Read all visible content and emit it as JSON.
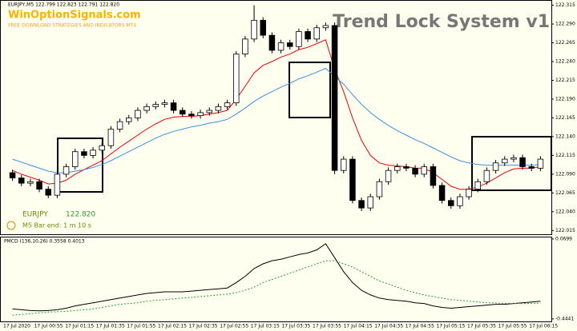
{
  "header": {
    "symbol_line": "EURJPY,M5  122.799 122.823 122.791 122.820",
    "site": "WinOptionSignals.com",
    "tagline": "FREE DOWNLOAD STRATEGIES AND INDICATORS MT4",
    "system_title": "Trend Lock System v1",
    "pair": "EURJPY",
    "price": "122.820",
    "bar_end": "M5 Bar end: 1 m 10 s"
  },
  "x_labels": [
    "17 Jul 2020",
    "17 Jul 00:55",
    "17 Jul 01:15",
    "17 Jul 01:35",
    "17 Jul 01:55",
    "17 Jul 02:15",
    "17 Jul 02:35",
    "17 Jul 02:55",
    "17 Jul 03:15",
    "17 Jul 03:35",
    "17 Jul 03:55",
    "17 Jul 04:15",
    "17 Jul 04:35",
    "17 Jul 04:55",
    "17 Jul 05:15",
    "17 Jul 05:35",
    "17 Jul 05:55",
    "17 Jul 06:15"
  ],
  "chart_data": [
    {
      "type": "candlestick",
      "up_color": "#ffffff",
      "down_color": "#000000",
      "open": [
        122.092,
        122.085,
        122.078,
        122.08,
        122.07,
        122.062,
        122.09,
        122.1,
        122.12,
        122.115,
        122.122,
        122.128,
        122.15,
        122.16,
        122.165,
        122.175,
        122.18,
        122.183,
        122.185,
        122.175,
        122.17,
        122.168,
        122.172,
        122.175,
        122.18,
        122.185,
        122.25,
        122.27,
        122.295,
        122.275,
        122.255,
        122.265,
        122.26,
        122.28,
        122.27,
        122.285,
        122.288,
        122.095,
        122.11,
        122.055,
        122.045,
        122.06,
        122.08,
        122.095,
        122.1,
        122.098,
        122.09,
        122.1,
        122.075,
        122.055,
        122.048,
        122.06,
        122.07,
        122.08,
        122.095,
        122.105,
        122.11,
        122.112,
        122.1,
        122.098
      ],
      "high": [
        122.096,
        122.089,
        122.084,
        122.084,
        122.074,
        122.094,
        122.104,
        122.124,
        122.124,
        122.126,
        122.132,
        122.154,
        122.164,
        122.169,
        122.179,
        122.184,
        122.187,
        122.189,
        122.189,
        122.179,
        122.174,
        122.176,
        122.179,
        122.184,
        122.189,
        122.254,
        122.274,
        122.315,
        122.299,
        122.279,
        122.269,
        122.269,
        122.284,
        122.284,
        122.289,
        122.292,
        122.292,
        122.114,
        122.114,
        122.059,
        122.064,
        122.084,
        122.099,
        122.104,
        122.104,
        122.102,
        122.104,
        122.104,
        122.079,
        122.059,
        122.064,
        122.074,
        122.084,
        122.099,
        122.109,
        122.114,
        122.116,
        122.116,
        122.104,
        122.114
      ],
      "low": [
        122.081,
        122.074,
        122.074,
        122.066,
        122.058,
        122.058,
        122.086,
        122.096,
        122.111,
        122.111,
        122.118,
        122.124,
        122.146,
        122.156,
        122.161,
        122.171,
        122.176,
        122.179,
        122.171,
        122.166,
        122.164,
        122.164,
        122.168,
        122.171,
        122.176,
        122.181,
        122.246,
        122.266,
        122.271,
        122.251,
        122.251,
        122.256,
        122.256,
        122.266,
        122.266,
        122.281,
        122.09,
        122.091,
        122.051,
        122.041,
        122.041,
        122.056,
        122.076,
        122.091,
        122.094,
        122.086,
        122.086,
        122.071,
        122.051,
        122.044,
        122.044,
        122.056,
        122.066,
        122.076,
        122.091,
        122.101,
        122.106,
        122.096,
        122.094,
        122.094
      ],
      "close": [
        122.085,
        122.078,
        122.08,
        122.07,
        122.062,
        122.09,
        122.1,
        122.12,
        122.115,
        122.122,
        122.128,
        122.15,
        122.16,
        122.165,
        122.175,
        122.18,
        122.183,
        122.185,
        122.175,
        122.17,
        122.168,
        122.172,
        122.175,
        122.18,
        122.185,
        122.25,
        122.27,
        122.295,
        122.275,
        122.255,
        122.265,
        122.26,
        122.28,
        122.27,
        122.285,
        122.288,
        122.095,
        122.11,
        122.055,
        122.045,
        122.06,
        122.08,
        122.095,
        122.1,
        122.098,
        122.09,
        122.1,
        122.075,
        122.055,
        122.048,
        122.06,
        122.07,
        122.08,
        122.095,
        122.105,
        122.11,
        122.112,
        122.1,
        122.098,
        122.11
      ],
      "lines": [
        {
          "color": "#e8000b",
          "values": [
            122.095,
            122.09,
            122.086,
            122.082,
            122.077,
            122.078,
            122.082,
            122.09,
            122.096,
            122.102,
            122.108,
            122.117,
            122.126,
            122.134,
            122.142,
            122.15,
            122.157,
            122.163,
            122.166,
            122.167,
            122.167,
            122.168,
            122.17,
            122.172,
            122.175,
            122.19,
            122.207,
            122.225,
            122.235,
            122.24,
            122.246,
            122.25,
            122.256,
            122.259,
            122.264,
            122.269,
            122.23,
            122.2,
            122.165,
            122.135,
            122.115,
            122.105,
            122.102,
            122.101,
            122.1,
            122.098,
            122.098,
            122.092,
            122.083,
            122.074,
            122.07,
            122.07,
            122.073,
            122.078,
            122.085,
            122.092,
            122.097,
            122.098,
            122.098,
            122.1
          ]
        },
        {
          "color": "#3d8fe0",
          "values": [
            122.11,
            122.106,
            122.102,
            122.098,
            122.094,
            122.092,
            122.092,
            122.094,
            122.096,
            122.099,
            122.103,
            122.108,
            122.114,
            122.12,
            122.126,
            122.132,
            122.138,
            122.143,
            122.147,
            122.15,
            122.153,
            122.155,
            122.158,
            122.16,
            122.163,
            122.17,
            122.178,
            122.187,
            122.194,
            122.2,
            122.206,
            122.211,
            122.217,
            122.221,
            122.226,
            122.231,
            122.22,
            122.21,
            122.196,
            122.183,
            122.172,
            122.163,
            122.155,
            122.148,
            122.142,
            122.136,
            122.131,
            122.125,
            122.119,
            122.113,
            122.108,
            122.105,
            122.103,
            122.102,
            122.102,
            122.102,
            122.102,
            122.102,
            122.102,
            122.103
          ]
        }
      ],
      "ylim": [
        122.01,
        122.322
      ],
      "yticks": [
        {
          "value": 122.315,
          "label": "122.315"
        },
        {
          "value": 122.29,
          "label": "122.290"
        },
        {
          "value": 122.265,
          "label": "122.265"
        },
        {
          "value": 122.24,
          "label": "122.240"
        },
        {
          "value": 122.215,
          "label": "122.215"
        },
        {
          "value": 122.19,
          "label": "122.190"
        },
        {
          "value": 122.165,
          "label": "122.165"
        },
        {
          "value": 122.14,
          "label": "122.140"
        },
        {
          "value": 122.115,
          "label": "122.115"
        },
        {
          "value": 122.09,
          "label": "122.090"
        },
        {
          "value": 122.065,
          "label": "122.065"
        },
        {
          "value": 122.04,
          "label": "122.040"
        },
        {
          "value": 122.015,
          "label": "122.015"
        }
      ]
    },
    {
      "type": "line",
      "title": "PMCD (136,10,26) 0.3558 0.4013",
      "lines": [
        {
          "color": "#000000",
          "values": [
            -0.38,
            -0.385,
            -0.39,
            -0.392,
            -0.39,
            -0.385,
            -0.375,
            -0.36,
            -0.35,
            -0.34,
            -0.33,
            -0.32,
            -0.31,
            -0.3,
            -0.29,
            -0.28,
            -0.275,
            -0.27,
            -0.27,
            -0.27,
            -0.265,
            -0.26,
            -0.255,
            -0.25,
            -0.245,
            -0.21,
            -0.17,
            -0.12,
            -0.09,
            -0.07,
            -0.06,
            -0.045,
            -0.03,
            -0.02,
            0,
            0.04,
            -0.05,
            -0.14,
            -0.21,
            -0.26,
            -0.29,
            -0.31,
            -0.32,
            -0.325,
            -0.33,
            -0.34,
            -0.345,
            -0.36,
            -0.37,
            -0.375,
            -0.37,
            -0.365,
            -0.36,
            -0.355,
            -0.35,
            -0.35,
            -0.345,
            -0.34,
            -0.335,
            -0.33
          ]
        },
        {
          "color": "#22a03a",
          "dashed": true,
          "values": [
            -0.42,
            -0.415,
            -0.41,
            -0.405,
            -0.4,
            -0.398,
            -0.395,
            -0.39,
            -0.385,
            -0.38,
            -0.37,
            -0.36,
            -0.35,
            -0.345,
            -0.34,
            -0.33,
            -0.325,
            -0.32,
            -0.315,
            -0.31,
            -0.305,
            -0.3,
            -0.295,
            -0.29,
            -0.285,
            -0.275,
            -0.26,
            -0.24,
            -0.21,
            -0.19,
            -0.17,
            -0.15,
            -0.13,
            -0.11,
            -0.09,
            -0.07,
            -0.07,
            -0.09,
            -0.11,
            -0.14,
            -0.17,
            -0.2,
            -0.22,
            -0.24,
            -0.26,
            -0.275,
            -0.29,
            -0.3,
            -0.31,
            -0.32,
            -0.325,
            -0.33,
            -0.335,
            -0.34,
            -0.342,
            -0.344,
            -0.345,
            -0.345,
            -0.344,
            -0.343
          ]
        }
      ],
      "ylim": [
        -0.46,
        0.085
      ],
      "yticks": [
        0.0699,
        -0.4441
      ]
    }
  ]
}
